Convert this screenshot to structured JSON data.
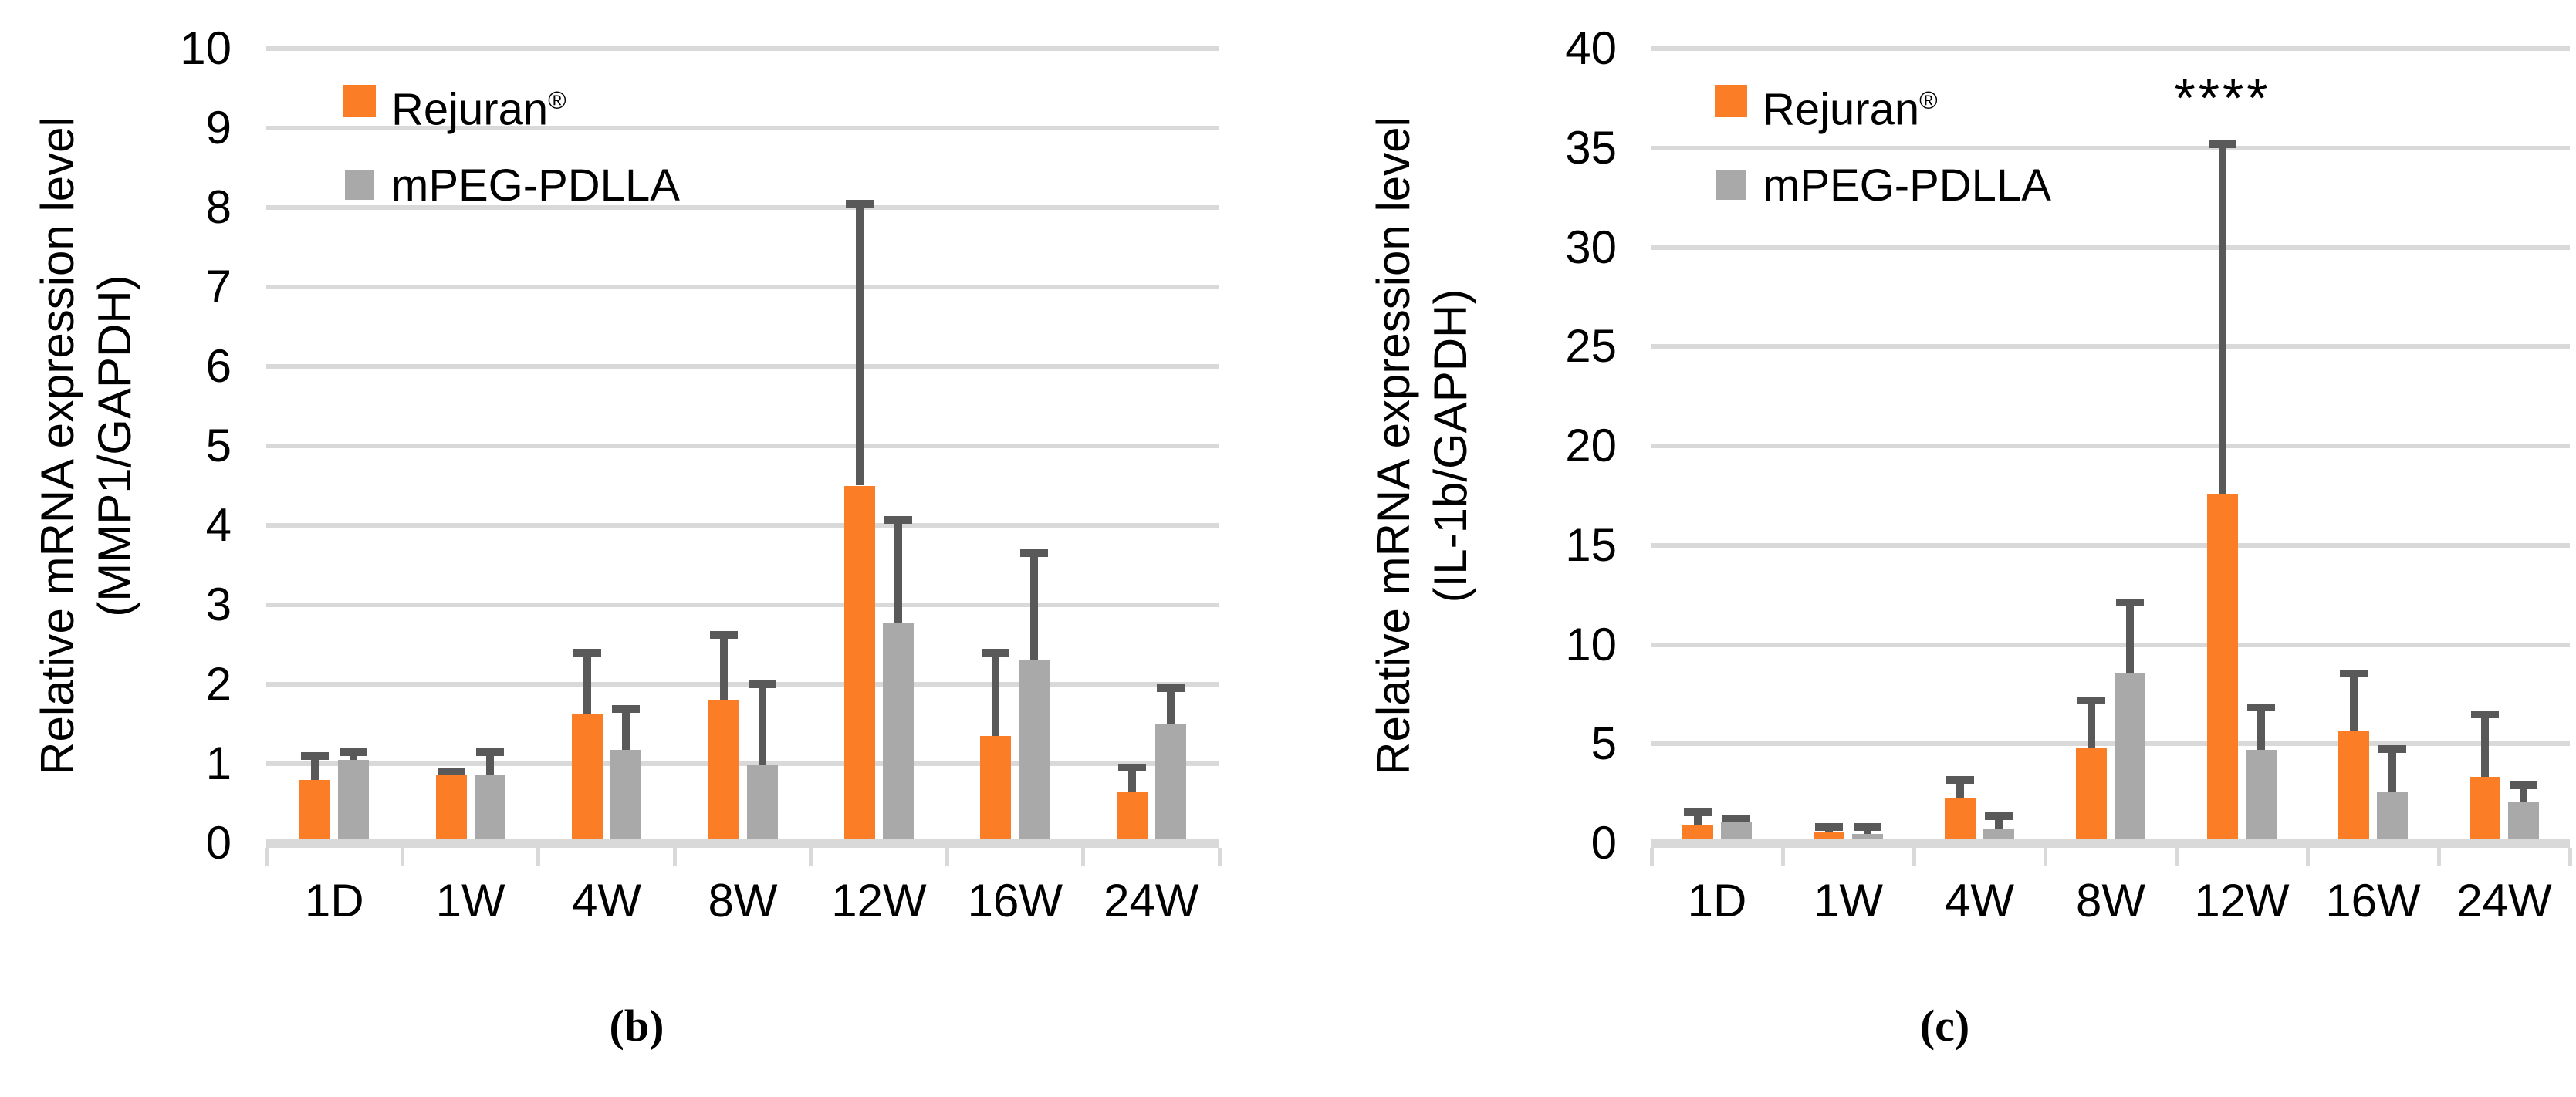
{
  "legend": {
    "series": [
      {
        "label": "Rejuran",
        "suffix": "®",
        "color": "#fb7d25"
      },
      {
        "label": "mPEG-PDLLA",
        "suffix": "",
        "color": "#a9a9a9"
      }
    ]
  },
  "style": {
    "gridline_color": "#d9d9d9",
    "error_bar_color": "#595959",
    "background": "#ffffff"
  },
  "chart_data": [
    {
      "type": "bar",
      "panel_label": "(b)",
      "ylabel_line1": "Relative mRNA expression level",
      "ylabel_line2": "(MMP1/GAPDH)",
      "categories": [
        "1D",
        "1W",
        "4W",
        "8W",
        "12W",
        "16W",
        "24W"
      ],
      "yticks": [
        0,
        1,
        2,
        3,
        4,
        5,
        6,
        7,
        8,
        9,
        10
      ],
      "ylim": [
        0,
        10
      ],
      "grid": true,
      "legend_position": "top-left-inside",
      "series": [
        {
          "name": "Rejuran®",
          "color": "#fb7d25",
          "values": [
            0.8,
            0.85,
            1.62,
            1.8,
            4.5,
            1.35,
            0.65
          ],
          "errors_plus": [
            0.3,
            0.05,
            0.78,
            0.82,
            3.55,
            1.05,
            0.3
          ]
        },
        {
          "name": "mPEG-PDLLA",
          "color": "#a9a9a9",
          "values": [
            1.05,
            0.85,
            1.17,
            0.98,
            2.77,
            2.3,
            1.5
          ],
          "errors_plus": [
            0.1,
            0.3,
            0.52,
            1.02,
            1.3,
            1.35,
            0.45
          ]
        }
      ],
      "annotations": []
    },
    {
      "type": "bar",
      "panel_label": "(c)",
      "ylabel_line1": "Relative mRNA expression level",
      "ylabel_line2": "(IL-1b/GAPDH)",
      "categories": [
        "1D",
        "1W",
        "4W",
        "8W",
        "12W",
        "16W",
        "24W"
      ],
      "yticks": [
        0,
        5,
        10,
        15,
        20,
        25,
        30,
        35,
        40
      ],
      "ylim": [
        0,
        40
      ],
      "grid": true,
      "legend_position": "top-left-inside",
      "series": [
        {
          "name": "Rejuran®",
          "color": "#fb7d25",
          "values": [
            0.95,
            0.55,
            2.25,
            4.8,
            17.6,
            5.65,
            3.35
          ],
          "errors_plus": [
            0.6,
            0.25,
            0.95,
            2.4,
            17.6,
            2.9,
            3.15
          ]
        },
        {
          "name": "mPEG-PDLLA",
          "color": "#a9a9a9",
          "values": [
            1.05,
            0.45,
            0.75,
            8.6,
            4.7,
            2.6,
            2.1
          ],
          "errors_plus": [
            0.2,
            0.35,
            0.6,
            3.5,
            2.15,
            2.15,
            0.8
          ]
        }
      ],
      "annotations": [
        {
          "text": "****",
          "category": "12W",
          "series": "Rejuran®",
          "y": 37.5
        }
      ]
    }
  ]
}
